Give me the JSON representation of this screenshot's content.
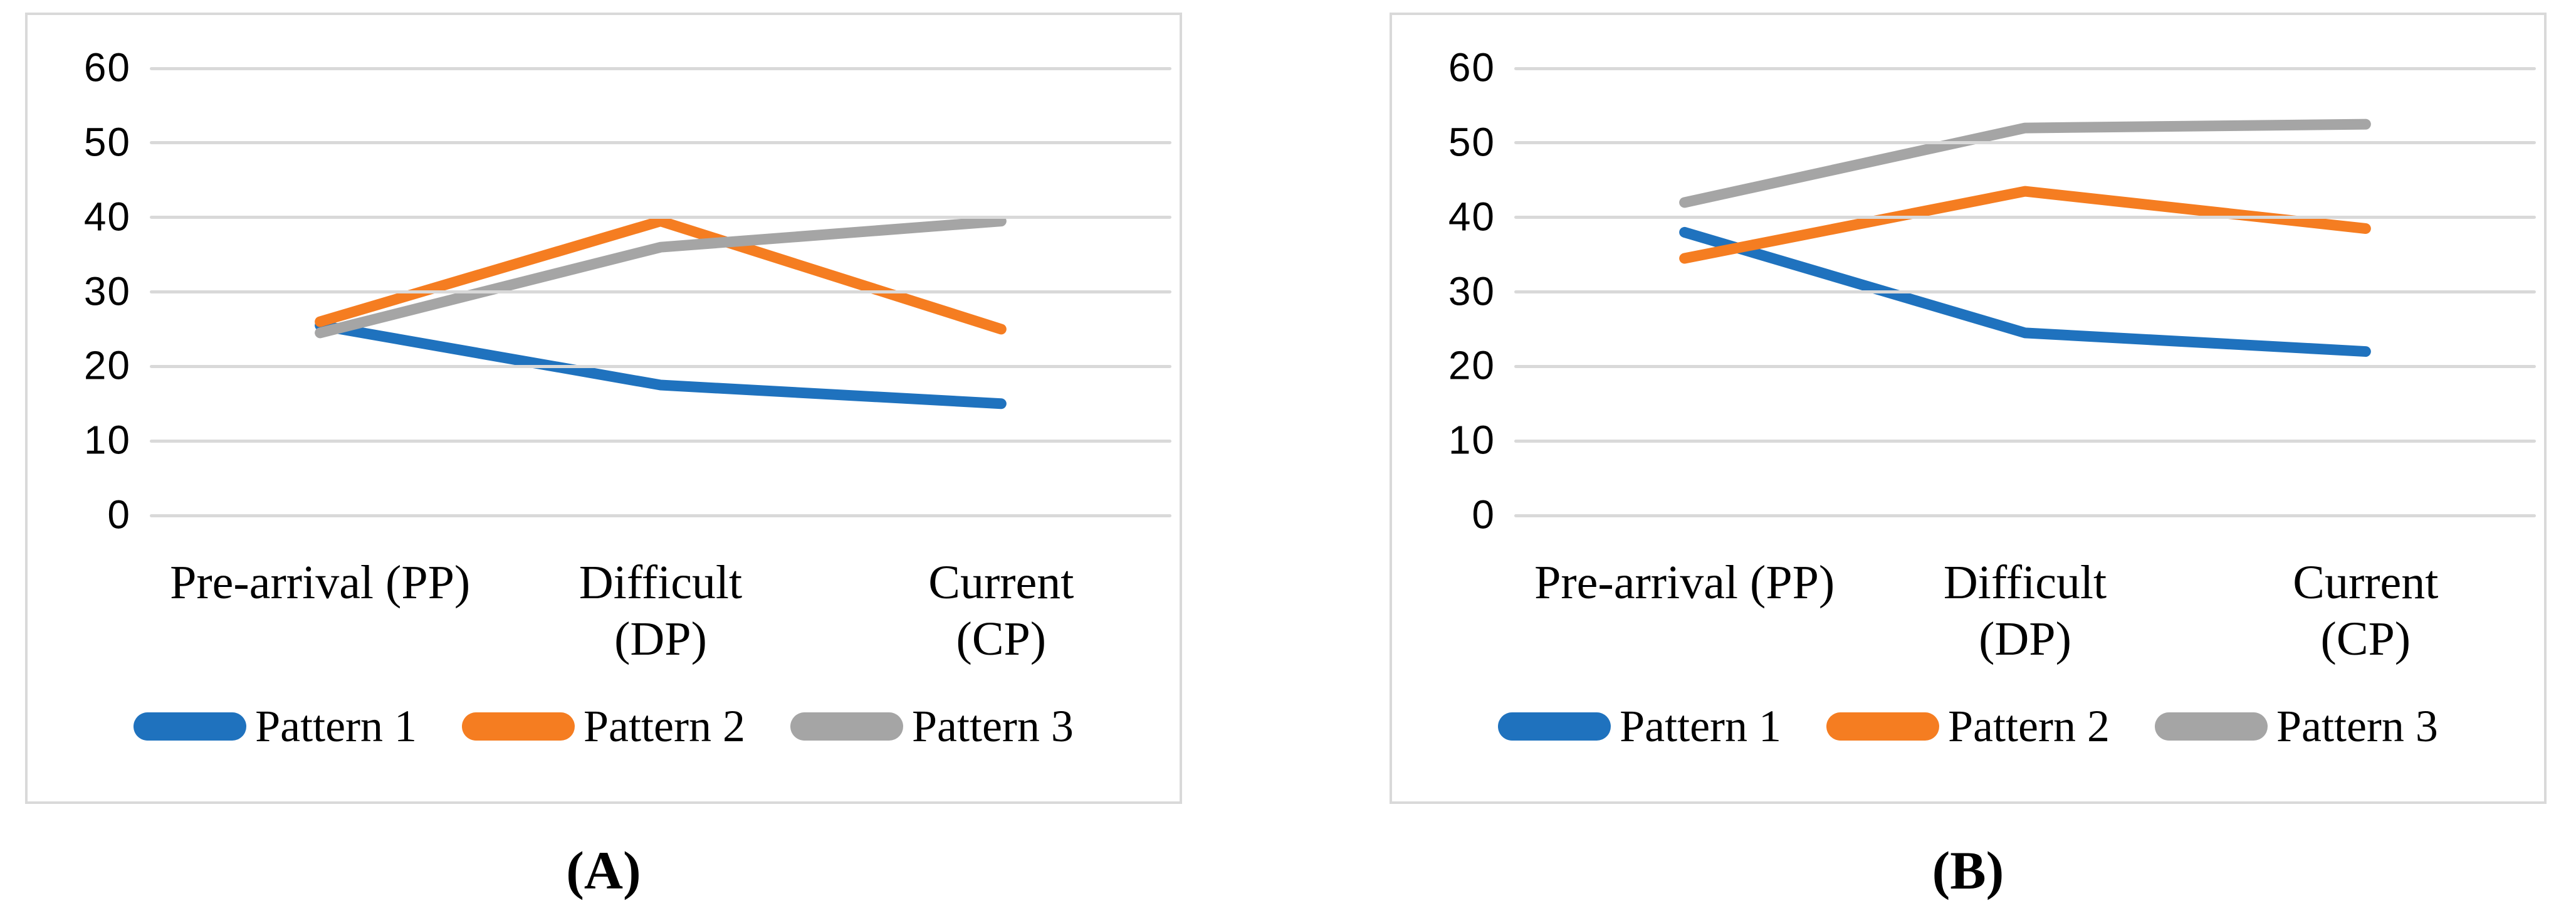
{
  "styles": {
    "gridline_color": "#D9D9D9",
    "panel_border_color": "#D9D9D9",
    "text_color": "#000000",
    "series_colors": {
      "pattern1": "#1F72BE",
      "pattern2": "#F57D21",
      "pattern3": "#A5A5A5"
    }
  },
  "chart_data": [
    {
      "type": "line",
      "panel_caption": "(A)",
      "title": "",
      "xlabel": "",
      "ylabel": "",
      "categories": [
        "Pre-arrival (PP)",
        "Difficult (DP)",
        "Current (CP)"
      ],
      "category_label_lines": [
        [
          "Pre-arrival (PP)"
        ],
        [
          "Difficult",
          "(DP)"
        ],
        [
          "Current",
          "(CP)"
        ]
      ],
      "series": [
        {
          "name": "Pattern 1",
          "color": "#1F72BE",
          "values": [
            25.5,
            17.5,
            15
          ]
        },
        {
          "name": "Pattern 2",
          "color": "#F57D21",
          "values": [
            26,
            39.5,
            25
          ]
        },
        {
          "name": "Pattern 3",
          "color": "#A5A5A5",
          "values": [
            24.5,
            36,
            39.5
          ]
        }
      ],
      "ylim": [
        0,
        60
      ],
      "yticks": [
        0,
        10,
        20,
        30,
        40,
        50,
        60
      ],
      "grid": true,
      "legend_position": "bottom"
    },
    {
      "type": "line",
      "panel_caption": "(B)",
      "title": "",
      "xlabel": "",
      "ylabel": "",
      "categories": [
        "Pre-arrival (PP)",
        "Difficult (DP)",
        "Current (CP)"
      ],
      "category_label_lines": [
        [
          "Pre-arrival (PP)"
        ],
        [
          "Difficult",
          "(DP)"
        ],
        [
          "Current",
          "(CP)"
        ]
      ],
      "series": [
        {
          "name": "Pattern 1",
          "color": "#1F72BE",
          "values": [
            38,
            24.5,
            22
          ]
        },
        {
          "name": "Pattern 2",
          "color": "#F57D21",
          "values": [
            34.5,
            43.5,
            38.5
          ]
        },
        {
          "name": "Pattern 3",
          "color": "#A5A5A5",
          "values": [
            42,
            52,
            52.5
          ]
        }
      ],
      "ylim": [
        0,
        60
      ],
      "yticks": [
        0,
        10,
        20,
        30,
        40,
        50,
        60
      ],
      "grid": true,
      "legend_position": "bottom"
    }
  ]
}
